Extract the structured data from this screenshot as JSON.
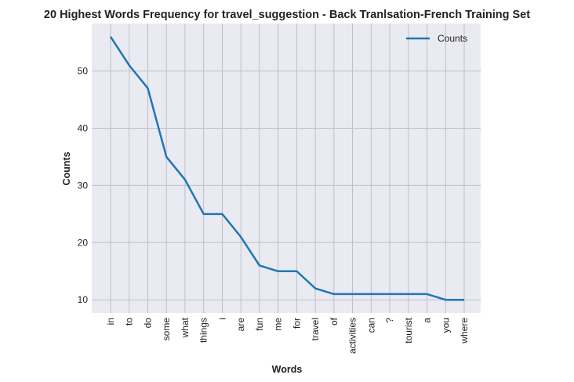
{
  "chart_data": {
    "type": "line",
    "title": "20 Highest Words Frequency for travel_suggestion - Back Tranlsation-French Training Set",
    "xlabel": "Words",
    "ylabel": "Counts",
    "categories": [
      "in",
      "to",
      "do",
      "some",
      "what",
      "things",
      "i",
      "are",
      "fun",
      "me",
      "for",
      "travel",
      "of",
      "activities",
      "can",
      "?",
      "tourist",
      "a",
      "you",
      "where"
    ],
    "series": [
      {
        "name": "Counts",
        "values": [
          56,
          51,
          47,
          35,
          31,
          25,
          25,
          21,
          16,
          15,
          15,
          12,
          11,
          11,
          11,
          11,
          11,
          11,
          10,
          10
        ],
        "color": "#1f77b4"
      }
    ],
    "yticks": [
      10,
      20,
      30,
      40,
      50
    ],
    "ylim": [
      7.7,
      58.3
    ],
    "grid": true,
    "legend": "upper right",
    "background": "#eaeaf2",
    "grid_color": "#bfbfc4"
  }
}
